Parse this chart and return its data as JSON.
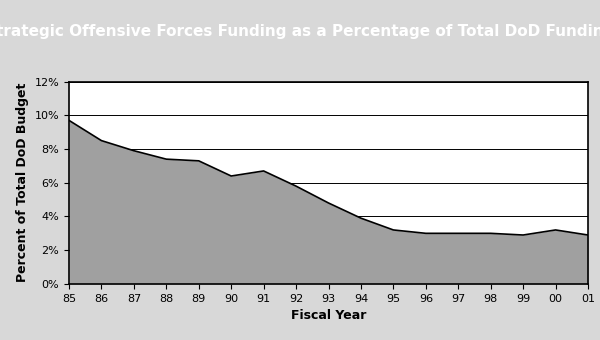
{
  "title": "Strategic Offensive Forces Funding as a Percentage of Total DoD Funding",
  "xlabel": "Fiscal Year",
  "ylabel": "Percent of Total DoD Budget",
  "year_labels": [
    "85",
    "86",
    "87",
    "88",
    "89",
    "90",
    "91",
    "92",
    "93",
    "94",
    "95",
    "96",
    "97",
    "98",
    "99",
    "00",
    "01"
  ],
  "values": [
    9.7,
    8.5,
    7.9,
    7.4,
    7.3,
    6.4,
    6.7,
    5.8,
    4.8,
    3.9,
    3.2,
    3.0,
    3.0,
    3.0,
    2.9,
    3.2,
    2.9
  ],
  "ylim": [
    0,
    0.12
  ],
  "yticks": [
    0.0,
    0.02,
    0.04,
    0.06,
    0.08,
    0.1,
    0.12
  ],
  "ytick_labels": [
    "0%",
    "2%",
    "4%",
    "6%",
    "8%",
    "10%",
    "12%"
  ],
  "fill_color": "#a0a0a0",
  "line_color": "#000000",
  "title_bg_color": "#808080",
  "title_text_color": "#ffffff",
  "plot_bg_color": "#ffffff",
  "outer_bg_color": "#d8d8d8",
  "grid_color": "#000000",
  "title_fontsize": 11,
  "axis_label_fontsize": 9,
  "tick_fontsize": 8
}
